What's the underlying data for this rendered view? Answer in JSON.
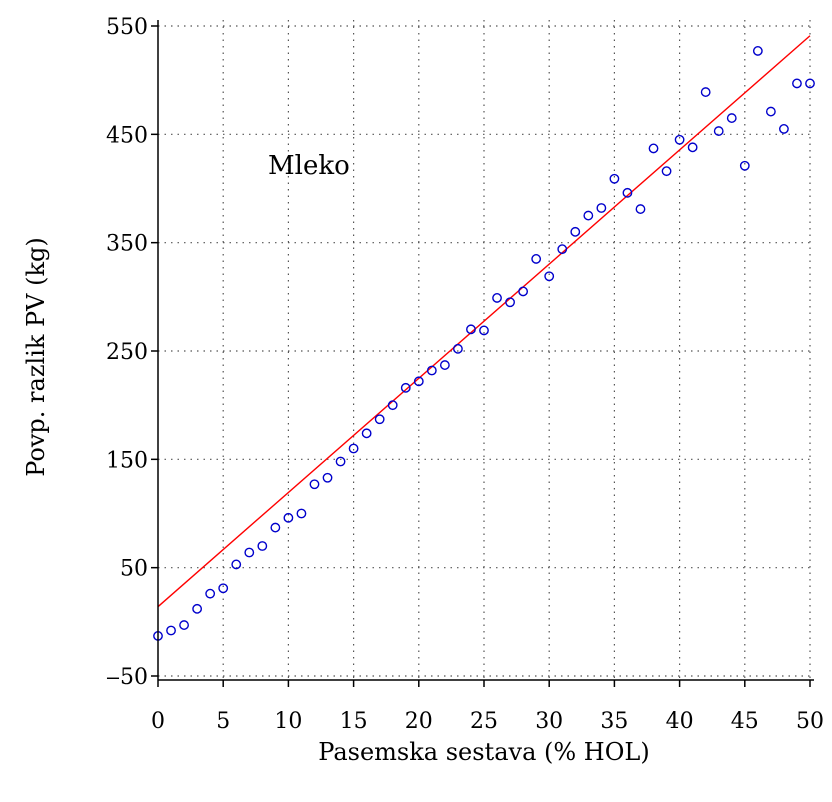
{
  "chart_data": {
    "type": "scatter",
    "title": "",
    "annotation": "Mleko",
    "xlabel": "Pasemska sestava (% HOL)",
    "ylabel": "Povp. razlik PV (kg)",
    "xlim": [
      0,
      50
    ],
    "ylim": [
      -50,
      560
    ],
    "xticks": [
      0,
      5,
      10,
      15,
      20,
      25,
      30,
      35,
      40,
      45,
      50
    ],
    "xtick_labels": [
      "0",
      "5",
      "10",
      "15",
      "20",
      "25",
      "30",
      "35",
      "40",
      "45",
      "50"
    ],
    "yticks": [
      -50,
      50,
      150,
      250,
      350,
      450,
      550
    ],
    "ytick_labels": [
      "‒50",
      "50",
      "150",
      "250",
      "350",
      "450",
      "550"
    ],
    "grid": true,
    "grid_style": "dotted",
    "fit_line": {
      "color": "#ff0000",
      "from": [
        0,
        14
      ],
      "to": [
        50,
        541
      ]
    },
    "point_color": "#0000cc",
    "points": [
      {
        "x": 0,
        "y": -13
      },
      {
        "x": 1,
        "y": -8
      },
      {
        "x": 2,
        "y": -3
      },
      {
        "x": 3,
        "y": 12
      },
      {
        "x": 4,
        "y": 26
      },
      {
        "x": 5,
        "y": 31
      },
      {
        "x": 6,
        "y": 53
      },
      {
        "x": 7,
        "y": 64
      },
      {
        "x": 8,
        "y": 70
      },
      {
        "x": 9,
        "y": 87
      },
      {
        "x": 10,
        "y": 96
      },
      {
        "x": 11,
        "y": 100
      },
      {
        "x": 12,
        "y": 127
      },
      {
        "x": 13,
        "y": 133
      },
      {
        "x": 14,
        "y": 148
      },
      {
        "x": 15,
        "y": 160
      },
      {
        "x": 16,
        "y": 174
      },
      {
        "x": 17,
        "y": 187
      },
      {
        "x": 18,
        "y": 200
      },
      {
        "x": 19,
        "y": 216
      },
      {
        "x": 20,
        "y": 222
      },
      {
        "x": 21,
        "y": 232
      },
      {
        "x": 22,
        "y": 237
      },
      {
        "x": 23,
        "y": 252
      },
      {
        "x": 24,
        "y": 270
      },
      {
        "x": 25,
        "y": 269
      },
      {
        "x": 26,
        "y": 299
      },
      {
        "x": 27,
        "y": 295
      },
      {
        "x": 28,
        "y": 305
      },
      {
        "x": 29,
        "y": 335
      },
      {
        "x": 30,
        "y": 319
      },
      {
        "x": 31,
        "y": 344
      },
      {
        "x": 32,
        "y": 360
      },
      {
        "x": 33,
        "y": 375
      },
      {
        "x": 34,
        "y": 382
      },
      {
        "x": 35,
        "y": 409
      },
      {
        "x": 36,
        "y": 396
      },
      {
        "x": 37,
        "y": 381
      },
      {
        "x": 38,
        "y": 437
      },
      {
        "x": 39,
        "y": 416
      },
      {
        "x": 40,
        "y": 445
      },
      {
        "x": 41,
        "y": 438
      },
      {
        "x": 42,
        "y": 489
      },
      {
        "x": 43,
        "y": 453
      },
      {
        "x": 44,
        "y": 465
      },
      {
        "x": 45,
        "y": 421
      },
      {
        "x": 46,
        "y": 527
      },
      {
        "x": 47,
        "y": 471
      },
      {
        "x": 48,
        "y": 455
      },
      {
        "x": 49,
        "y": 497
      },
      {
        "x": 50,
        "y": 497
      }
    ]
  }
}
